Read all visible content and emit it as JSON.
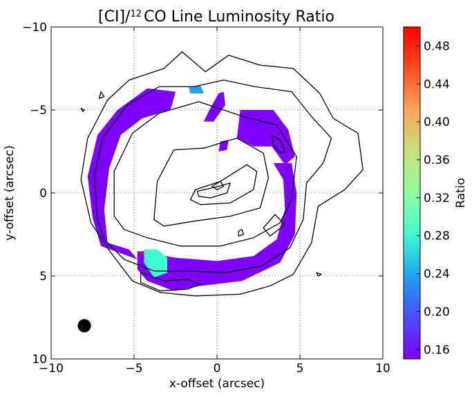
{
  "chart_data": {
    "type": "heatmap",
    "title": {
      "main": "[CI]/",
      "sup": "12",
      "rest": "CO Line Luminosity Ratio"
    },
    "xlabel": "x-offset (arcsec)",
    "ylabel": "y-offset (arcsec)",
    "xlim": [
      -10,
      10
    ],
    "ylim": [
      10,
      -10
    ],
    "y_inverted": true,
    "x_ticks": [
      -10,
      -5,
      0,
      5,
      10
    ],
    "x_tick_labels": [
      "−10",
      "−5",
      "0",
      "5",
      "10"
    ],
    "y_ticks": [
      -10,
      -5,
      0,
      5,
      10
    ],
    "y_tick_labels": [
      "−10",
      "−5",
      "0",
      "5",
      "10"
    ],
    "grid": "dotted",
    "colormap": "rainbow",
    "colorbar": {
      "label": "Ratio",
      "range": [
        0.15,
        0.5
      ],
      "ticks": [
        0.16,
        0.2,
        0.24,
        0.28,
        0.32,
        0.36,
        0.4,
        0.44,
        0.48
      ],
      "tick_labels": [
        "0.16",
        "0.20",
        "0.24",
        "0.28",
        "0.32",
        "0.36",
        "0.40",
        "0.44",
        "0.48"
      ]
    },
    "colors": {
      "dominant_ratio": "#7f00ff",
      "stops": [
        "#7f00ff",
        "#4a4dfd",
        "#1ea2f0",
        "#3ffbd2",
        "#8ffc9c",
        "#c6e07d",
        "#ffa65a",
        "#ff4b24",
        "#ff0000"
      ]
    },
    "ratio_regions": [
      {
        "ratio": 0.16,
        "outline": [
          [
            -7.5,
            1.5
          ],
          [
            -7.8,
            -1
          ],
          [
            -7.2,
            -3.5
          ],
          [
            -6,
            -5
          ],
          [
            -4.2,
            -6.3
          ],
          [
            -2.5,
            -6.1
          ],
          [
            -2.8,
            -5
          ],
          [
            -4.5,
            -4.5
          ],
          [
            -5.8,
            -3.5
          ],
          [
            -6.5,
            -1.5
          ],
          [
            -6.8,
            1
          ],
          [
            -6.6,
            3
          ],
          [
            -5.3,
            3.4
          ],
          [
            -4.8,
            4
          ],
          [
            -7,
            3.2
          ]
        ]
      },
      {
        "ratio": 0.16,
        "outline": [
          [
            -4.8,
            3.5
          ],
          [
            -2.5,
            3.9
          ],
          [
            0,
            4.1
          ],
          [
            2.2,
            3.8
          ],
          [
            3.6,
            2.8
          ],
          [
            4.1,
            1
          ],
          [
            4,
            -0.8
          ],
          [
            3.4,
            -1.8
          ],
          [
            4.5,
            -1.8
          ],
          [
            4.8,
            0
          ],
          [
            4.7,
            2.5
          ],
          [
            3.8,
            4.2
          ],
          [
            1.5,
            5.3
          ],
          [
            -1,
            5.6
          ],
          [
            -2.6,
            5.9
          ],
          [
            -4.2,
            5.3
          ],
          [
            -4.8,
            4.6
          ]
        ]
      },
      {
        "ratio": 0.16,
        "outline": [
          [
            0.4,
            -6.1
          ],
          [
            0.5,
            -5.3
          ],
          [
            -0.2,
            -4.3
          ],
          [
            -0.8,
            -4.3
          ],
          [
            -0.4,
            -5.1
          ],
          [
            0.1,
            -6
          ]
        ]
      },
      {
        "ratio": 0.16,
        "outline": [
          [
            0.2,
            -3.1
          ],
          [
            0.7,
            -3.2
          ],
          [
            0.6,
            -2.6
          ],
          [
            0.1,
            -2.5
          ]
        ]
      },
      {
        "ratio": 0.16,
        "outline": [
          [
            1.4,
            -5
          ],
          [
            3.4,
            -5
          ],
          [
            4.3,
            -3.8
          ],
          [
            4.7,
            -2.2
          ],
          [
            4.1,
            -1.7
          ],
          [
            3.3,
            -2.8
          ],
          [
            2.2,
            -2.8
          ],
          [
            1.2,
            -3.3
          ]
        ]
      },
      {
        "ratio": 0.3,
        "outline": [
          [
            -4.4,
            3.4
          ],
          [
            -3.6,
            3.4
          ],
          [
            -3,
            3.9
          ],
          [
            -3,
            4.8
          ],
          [
            -3.8,
            5.1
          ],
          [
            -4.4,
            4.2
          ]
        ]
      },
      {
        "ratio": 0.24,
        "outline": [
          [
            -1.7,
            -6.4
          ],
          [
            -1,
            -6.5
          ],
          [
            -0.8,
            -6.0
          ],
          [
            -1.6,
            -6.0
          ]
        ]
      },
      {
        "ratio": 0.48,
        "outline": [
          [
            -4.6,
            3.5
          ],
          [
            -4.4,
            3.5
          ],
          [
            -4.4,
            3.7
          ],
          [
            -4.6,
            3.7
          ]
        ]
      }
    ],
    "contours": [
      [
        [
          -7.6,
          1.8
        ],
        [
          -8.2,
          -0.8
        ],
        [
          -7.8,
          -3.3
        ],
        [
          -6.6,
          -5.6
        ],
        [
          -5.3,
          -6.8
        ],
        [
          -3.2,
          -7.5
        ],
        [
          -2.1,
          -8.5
        ],
        [
          -0.7,
          -7.3
        ],
        [
          0.7,
          -8.3
        ],
        [
          2.6,
          -7.7
        ],
        [
          4.6,
          -7.5
        ],
        [
          6.2,
          -6
        ],
        [
          7,
          -4.5
        ],
        [
          8.5,
          -3.6
        ],
        [
          8.8,
          -1.4
        ],
        [
          7.7,
          -0.2
        ],
        [
          6.1,
          0.8
        ],
        [
          5.7,
          3
        ],
        [
          4.6,
          4.9
        ],
        [
          3.2,
          5.6
        ],
        [
          1.4,
          6.1
        ],
        [
          -1.3,
          6.2
        ],
        [
          -3.4,
          6
        ],
        [
          -5.1,
          5.3
        ],
        [
          -6.4,
          3.6
        ]
      ],
      [
        [
          -7.2,
          1.6
        ],
        [
          -7.4,
          -1
        ],
        [
          -6.9,
          -3.3
        ],
        [
          -5.4,
          -5.3
        ],
        [
          -3.5,
          -6.4
        ],
        [
          -1.4,
          -6.4
        ],
        [
          0.4,
          -6.8
        ],
        [
          2.3,
          -6.4
        ],
        [
          4.5,
          -6.1
        ],
        [
          5.7,
          -4.6
        ],
        [
          6.9,
          -3.3
        ],
        [
          6.4,
          -1.8
        ],
        [
          5.4,
          -0.6
        ],
        [
          5.2,
          1.6
        ],
        [
          4.4,
          3.3
        ],
        [
          2.7,
          4.4
        ],
        [
          0.5,
          4.8
        ],
        [
          -1.6,
          4.7
        ],
        [
          -3.8,
          4.7
        ],
        [
          -5.6,
          4
        ],
        [
          -6.8,
          2.8
        ]
      ],
      [
        [
          -6.2,
          1.4
        ],
        [
          -6.2,
          -1.3
        ],
        [
          -5.1,
          -3.6
        ],
        [
          -3.5,
          -4.8
        ],
        [
          -1.1,
          -5.5
        ],
        [
          1.6,
          -4.6
        ],
        [
          3.6,
          -4.1
        ],
        [
          4.8,
          -2.2
        ],
        [
          4.5,
          0.4
        ],
        [
          3.8,
          1.8
        ],
        [
          2.2,
          2.7
        ],
        [
          0.2,
          3.2
        ],
        [
          -2.2,
          3.2
        ],
        [
          -4.2,
          2.7
        ],
        [
          -5.6,
          2.2
        ]
      ],
      [
        [
          -3.8,
          1.6
        ],
        [
          -3.6,
          -0.7
        ],
        [
          -2.6,
          -2.6
        ],
        [
          -0.8,
          -2.7
        ],
        [
          1.2,
          -3.3
        ],
        [
          2.8,
          -2.4
        ],
        [
          3.1,
          -0.9
        ],
        [
          2.6,
          0.9
        ],
        [
          0.8,
          1.4
        ],
        [
          -1.4,
          1.7
        ],
        [
          -3.2,
          2
        ]
      ],
      [
        [
          -1.3,
          -0.2
        ],
        [
          0.2,
          -0.7
        ],
        [
          1.8,
          -1.7
        ],
        [
          2.4,
          -1.3
        ],
        [
          2.2,
          -0.2
        ],
        [
          0.8,
          0.6
        ],
        [
          -1,
          0.7
        ],
        [
          -1.6,
          0.4
        ]
      ],
      [
        [
          -1.2,
          -0.1
        ],
        [
          0.1,
          -0.4
        ],
        [
          0.8,
          -0.6
        ],
        [
          0.6,
          0
        ],
        [
          -0.4,
          0.3
        ],
        [
          -1.1,
          0.2
        ]
      ],
      [
        [
          -0.3,
          -0.4
        ],
        [
          0.2,
          -0.7
        ],
        [
          0.4,
          -0.4
        ],
        [
          0,
          -0.2
        ]
      ],
      [
        [
          2.8,
          2.1
        ],
        [
          3.5,
          1.3
        ],
        [
          4.1,
          1.9
        ],
        [
          3.2,
          2.6
        ]
      ],
      [
        [
          3.3,
          -3.5
        ],
        [
          3.8,
          -3.2
        ],
        [
          4.1,
          -2.5
        ],
        [
          3.8,
          -2.4
        ],
        [
          3.4,
          -2.9
        ]
      ],
      [
        [
          -4.6,
          4.8
        ],
        [
          -3.2,
          5.3
        ],
        [
          -1.8,
          5.2
        ],
        [
          -1,
          5.5
        ],
        [
          -1.8,
          5.8
        ],
        [
          -3.4,
          5.9
        ],
        [
          -4.6,
          5.4
        ]
      ],
      [
        [
          1.3,
          2.3
        ],
        [
          1.5,
          2.2
        ],
        [
          1.6,
          2.5
        ],
        [
          1.3,
          2.6
        ]
      ],
      [
        [
          6,
          4.8
        ],
        [
          6.3,
          4.9
        ],
        [
          6.1,
          5
        ]
      ],
      [
        [
          -7,
          -6.1
        ],
        [
          -6.8,
          -5.8
        ],
        [
          -7.1,
          -5.7
        ]
      ],
      [
        [
          -8.2,
          -5.1
        ],
        [
          -8,
          -5
        ],
        [
          -8.1,
          -4.9
        ]
      ]
    ],
    "beam": {
      "x": -8,
      "y": 8,
      "radius_arcsec": 0.4
    }
  }
}
